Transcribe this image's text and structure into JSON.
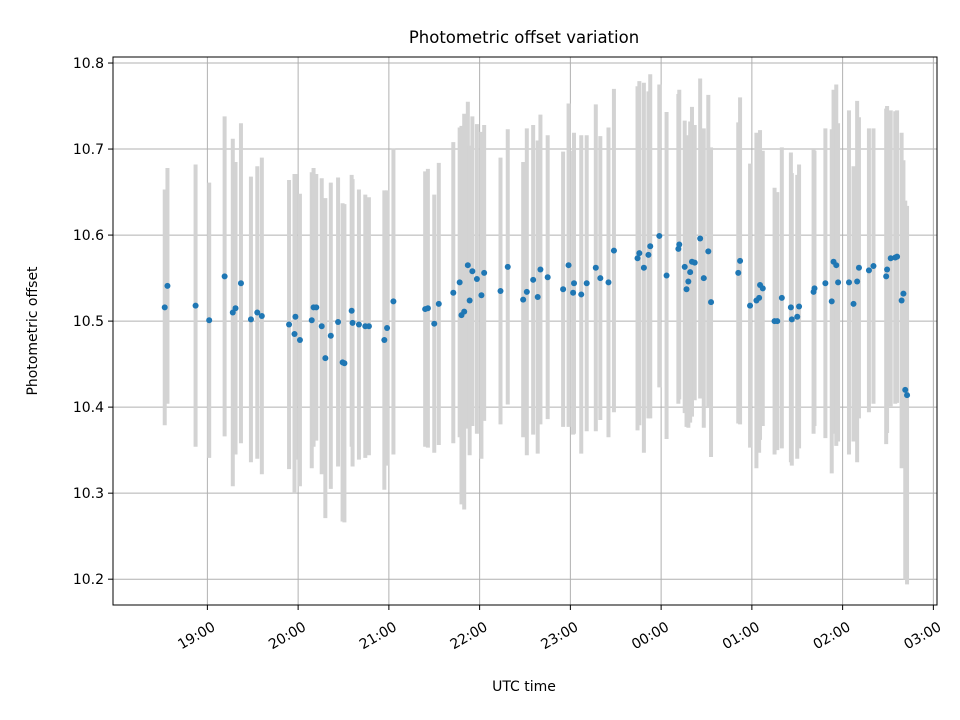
{
  "chart_data": {
    "type": "scatter",
    "title": "Photometric offset variation",
    "xlabel": "UTC time",
    "ylabel": "Photometric offset",
    "x_axis": "time (decimal hours UTC; 24+ = following day after midnight)",
    "xlim": [
      17.96,
      27.04
    ],
    "ylim": [
      10.17,
      10.807
    ],
    "x_ticks": [
      {
        "value": 19,
        "label": "19:00"
      },
      {
        "value": 20,
        "label": "20:00"
      },
      {
        "value": 21,
        "label": "21:00"
      },
      {
        "value": 22,
        "label": "22:00"
      },
      {
        "value": 23,
        "label": "23:00"
      },
      {
        "value": 24,
        "label": "00:00"
      },
      {
        "value": 25,
        "label": "01:00"
      },
      {
        "value": 26,
        "label": "02:00"
      },
      {
        "value": 27,
        "label": "03:00"
      }
    ],
    "y_ticks": [
      {
        "value": 10.2,
        "label": "10.2"
      },
      {
        "value": 10.3,
        "label": "10.3"
      },
      {
        "value": 10.4,
        "label": "10.4"
      },
      {
        "value": 10.5,
        "label": "10.5"
      },
      {
        "value": 10.6,
        "label": "10.6"
      },
      {
        "value": 10.7,
        "label": "10.7"
      },
      {
        "value": 10.8,
        "label": "10.8"
      }
    ],
    "grid": true,
    "legend": "none",
    "marker_color": "#1f77b4",
    "errorbar_color": "#d3d3d3",
    "points": [
      [
        18.53,
        10.516,
        0.137
      ],
      [
        18.56,
        10.541,
        0.137
      ],
      [
        18.87,
        10.518,
        0.164
      ],
      [
        19.02,
        10.501,
        0.16
      ],
      [
        19.19,
        10.552,
        0.186
      ],
      [
        19.28,
        10.51,
        0.202
      ],
      [
        19.31,
        10.515,
        0.17
      ],
      [
        19.37,
        10.544,
        0.186
      ],
      [
        19.48,
        10.502,
        0.166
      ],
      [
        19.55,
        10.51,
        0.17
      ],
      [
        19.6,
        10.506,
        0.184
      ],
      [
        19.9,
        10.496,
        0.168
      ],
      [
        19.96,
        10.485,
        0.186
      ],
      [
        19.97,
        10.505,
        0.166
      ],
      [
        20.02,
        10.478,
        0.17
      ],
      [
        20.15,
        10.501,
        0.172
      ],
      [
        20.17,
        10.516,
        0.162
      ],
      [
        20.2,
        10.516,
        0.155
      ],
      [
        20.26,
        10.494,
        0.172
      ],
      [
        20.3,
        10.457,
        0.186
      ],
      [
        20.36,
        10.483,
        0.178
      ],
      [
        20.44,
        10.499,
        0.168
      ],
      [
        20.49,
        10.452,
        0.185
      ],
      [
        20.51,
        10.451,
        0.185
      ],
      [
        20.59,
        10.512,
        0.158
      ],
      [
        20.6,
        10.498,
        0.167
      ],
      [
        20.67,
        10.496,
        0.157
      ],
      [
        20.74,
        10.494,
        0.153
      ],
      [
        20.78,
        10.494,
        0.15
      ],
      [
        20.95,
        10.478,
        0.174
      ],
      [
        20.98,
        10.492,
        0.16
      ],
      [
        21.05,
        10.523,
        0.178
      ],
      [
        21.4,
        10.514,
        0.16
      ],
      [
        21.43,
        10.515,
        0.162
      ],
      [
        21.5,
        10.497,
        0.15
      ],
      [
        21.55,
        10.52,
        0.164
      ],
      [
        21.71,
        10.533,
        0.175
      ],
      [
        21.78,
        10.545,
        0.18
      ],
      [
        21.8,
        10.507,
        0.22
      ],
      [
        21.83,
        10.511,
        0.23
      ],
      [
        21.87,
        10.565,
        0.19
      ],
      [
        21.89,
        10.524,
        0.18
      ],
      [
        21.92,
        10.558,
        0.18
      ],
      [
        21.97,
        10.549,
        0.18
      ],
      [
        22.02,
        10.53,
        0.19
      ],
      [
        22.05,
        10.556,
        0.172
      ],
      [
        22.23,
        10.535,
        0.155
      ],
      [
        22.31,
        10.563,
        0.16
      ],
      [
        22.48,
        10.525,
        0.16
      ],
      [
        22.52,
        10.534,
        0.19
      ],
      [
        22.59,
        10.548,
        0.18
      ],
      [
        22.64,
        10.528,
        0.182
      ],
      [
        22.67,
        10.56,
        0.18
      ],
      [
        22.75,
        10.551,
        0.165
      ],
      [
        22.92,
        10.537,
        0.16
      ],
      [
        22.98,
        10.565,
        0.188
      ],
      [
        23.03,
        10.533,
        0.165
      ],
      [
        23.04,
        10.544,
        0.175
      ],
      [
        23.12,
        10.531,
        0.185
      ],
      [
        23.18,
        10.544,
        0.172
      ],
      [
        23.28,
        10.562,
        0.19
      ],
      [
        23.33,
        10.55,
        0.165
      ],
      [
        23.42,
        10.545,
        0.18
      ],
      [
        23.48,
        10.582,
        0.188
      ],
      [
        23.74,
        10.573,
        0.2
      ],
      [
        23.76,
        10.579,
        0.2
      ],
      [
        23.81,
        10.562,
        0.215
      ],
      [
        23.86,
        10.577,
        0.19
      ],
      [
        23.88,
        10.587,
        0.2
      ],
      [
        23.98,
        10.599,
        0.176
      ],
      [
        24.06,
        10.553,
        0.19
      ],
      [
        24.19,
        10.584,
        0.18
      ],
      [
        24.2,
        10.589,
        0.18
      ],
      [
        24.26,
        10.563,
        0.17
      ],
      [
        24.28,
        10.537,
        0.16
      ],
      [
        24.3,
        10.546,
        0.17
      ],
      [
        24.32,
        10.557,
        0.175
      ],
      [
        24.34,
        10.569,
        0.18
      ],
      [
        24.37,
        10.568,
        0.16
      ],
      [
        24.43,
        10.596,
        0.186
      ],
      [
        24.47,
        10.55,
        0.174
      ],
      [
        24.52,
        10.581,
        0.182
      ],
      [
        24.55,
        10.522,
        0.18
      ],
      [
        24.85,
        10.556,
        0.175
      ],
      [
        24.87,
        10.57,
        0.19
      ],
      [
        24.98,
        10.518,
        0.165
      ],
      [
        25.05,
        10.524,
        0.195
      ],
      [
        25.08,
        10.527,
        0.18
      ],
      [
        25.09,
        10.542,
        0.18
      ],
      [
        25.12,
        10.538,
        0.16
      ],
      [
        25.25,
        10.5,
        0.155
      ],
      [
        25.28,
        10.5,
        0.15
      ],
      [
        25.33,
        10.527,
        0.175
      ],
      [
        25.43,
        10.516,
        0.18
      ],
      [
        25.44,
        10.502,
        0.17
      ],
      [
        25.5,
        10.505,
        0.165
      ],
      [
        25.52,
        10.517,
        0.165
      ],
      [
        25.68,
        10.534,
        0.165
      ],
      [
        25.69,
        10.538,
        0.16
      ],
      [
        25.81,
        10.544,
        0.18
      ],
      [
        25.88,
        10.523,
        0.2
      ],
      [
        25.9,
        10.569,
        0.2
      ],
      [
        25.93,
        10.565,
        0.21
      ],
      [
        25.95,
        10.545,
        0.185
      ],
      [
        26.07,
        10.545,
        0.2
      ],
      [
        26.12,
        10.52,
        0.16
      ],
      [
        26.16,
        10.546,
        0.21
      ],
      [
        26.18,
        10.562,
        0.175
      ],
      [
        26.29,
        10.559,
        0.165
      ],
      [
        26.34,
        10.564,
        0.16
      ],
      [
        26.48,
        10.552,
        0.195
      ],
      [
        26.49,
        10.56,
        0.19
      ],
      [
        26.53,
        10.573,
        0.172
      ],
      [
        26.58,
        10.574,
        0.17
      ],
      [
        26.6,
        10.575,
        0.17
      ],
      [
        26.65,
        10.524,
        0.195
      ],
      [
        26.67,
        10.532,
        0.155
      ],
      [
        26.69,
        10.42,
        0.22
      ],
      [
        26.71,
        10.414,
        0.22
      ]
    ]
  }
}
